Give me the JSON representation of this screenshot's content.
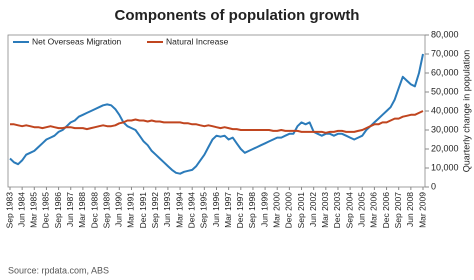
{
  "chart_data": {
    "type": "line",
    "title": "Components of population growth",
    "y_axis_label": "Quarterly change in population",
    "source": "Source: rpdata.com, ABS",
    "categories": [
      "Sep 1983",
      null,
      null,
      "Jun 1984",
      null,
      null,
      "Mar 1985",
      null,
      null,
      "Dec 1985",
      null,
      null,
      "Sep 1986",
      null,
      null,
      "Jun 1987",
      null,
      null,
      "Mar 1988",
      null,
      null,
      "Dec 1988",
      null,
      null,
      "Sep 1989",
      null,
      null,
      "Jun 1990",
      null,
      null,
      "Mar 1991",
      null,
      null,
      "Dec 1991",
      null,
      null,
      "Sep 1992",
      null,
      null,
      "Jun 1993",
      null,
      null,
      "Mar 1994",
      null,
      null,
      "Dec 1994",
      null,
      null,
      "Sep 1995",
      null,
      null,
      "Jun 1996",
      null,
      null,
      "Mar 1997",
      null,
      null,
      "Dec 1997",
      null,
      null,
      "Sep 1998",
      null,
      null,
      "Jun 1999",
      null,
      null,
      "Mar 2000",
      null,
      null,
      "Dec 2000",
      null,
      null,
      "Sep 2001",
      null,
      null,
      "Jun 2002",
      null,
      null,
      "Mar 2003",
      null,
      null,
      "Dec 2003",
      null,
      null,
      "Sep 2004",
      null,
      null,
      "Jun 2005",
      null,
      null,
      "Mar 2006",
      null,
      null,
      "Dec 2006",
      null,
      null,
      "Sep 2007",
      null,
      null,
      "Jun 2008",
      null,
      null,
      "Mar 2009"
    ],
    "series": [
      {
        "name": "Net Overseas Migration",
        "color": "#2b7bba",
        "values": [
          15000,
          13000,
          12000,
          14000,
          17000,
          18000,
          19000,
          21000,
          23000,
          25000,
          26000,
          27000,
          29000,
          30000,
          32000,
          34000,
          35000,
          37000,
          38000,
          39000,
          40000,
          41000,
          42000,
          43000,
          43500,
          43000,
          41000,
          38000,
          34000,
          32000,
          31000,
          30000,
          27000,
          24000,
          22000,
          19000,
          17000,
          15000,
          13000,
          11000,
          9000,
          7500,
          7000,
          8000,
          8500,
          9000,
          11000,
          14000,
          17000,
          21000,
          25000,
          27000,
          26500,
          27000,
          25000,
          26000,
          23000,
          20000,
          18000,
          19000,
          20000,
          21000,
          22000,
          23000,
          24000,
          25000,
          26000,
          26000,
          27000,
          28000,
          28000,
          32000,
          34000,
          33000,
          34000,
          29000,
          28000,
          27000,
          28000,
          28000,
          27000,
          28000,
          28000,
          27000,
          26000,
          25000,
          26000,
          27000,
          30000,
          32000,
          34000,
          36000,
          38000,
          40000,
          42000,
          46000,
          52000,
          58000,
          56000,
          54000,
          53000,
          60000,
          70000
        ]
      },
      {
        "name": "Natural Increase",
        "color": "#c0451f",
        "values": [
          33000,
          33000,
          32500,
          32000,
          32500,
          32000,
          31500,
          31500,
          31000,
          31500,
          32000,
          31500,
          31000,
          31000,
          31500,
          31500,
          31000,
          31000,
          31000,
          30500,
          31000,
          31500,
          32000,
          32500,
          32000,
          32000,
          32500,
          33500,
          34000,
          35000,
          35000,
          35500,
          35000,
          35000,
          34500,
          35000,
          34500,
          34500,
          34000,
          34000,
          34000,
          34000,
          34000,
          33500,
          33500,
          33000,
          33000,
          32500,
          32000,
          32500,
          32000,
          31500,
          31000,
          31500,
          31000,
          30500,
          30500,
          30000,
          30000,
          30000,
          30000,
          30000,
          30000,
          30000,
          30000,
          29500,
          29500,
          30000,
          29500,
          29500,
          29500,
          29500,
          29000,
          29000,
          29000,
          29000,
          29000,
          29000,
          28500,
          29000,
          29000,
          29500,
          29500,
          29000,
          29000,
          29000,
          29500,
          30000,
          31000,
          32000,
          33000,
          33000,
          34000,
          34000,
          35000,
          36000,
          36000,
          37000,
          37500,
          38000,
          38000,
          39000,
          40000
        ]
      }
    ],
    "ylim": [
      0,
      80000
    ],
    "yticks": [
      0,
      {
        "value": 10000,
        "label": "10,000"
      },
      {
        "value": 20000,
        "label": "20,000"
      },
      {
        "value": 30000,
        "label": "30,000"
      },
      {
        "value": 40000,
        "label": "40,000"
      },
      {
        "value": 50000,
        "label": "50,000"
      },
      {
        "value": 60000,
        "label": "60,000"
      },
      {
        "value": 70000,
        "label": "70,000"
      },
      {
        "value": 80000,
        "label": "80,000"
      }
    ],
    "grid": false
  }
}
